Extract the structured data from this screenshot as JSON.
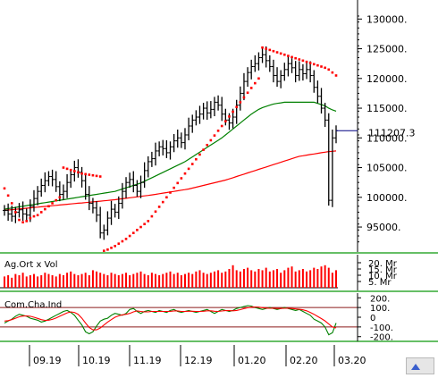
{
  "chart_data": [
    {
      "type": "ohlc",
      "panel": "price",
      "ylim": [
        92000,
        132000
      ],
      "yticks": [
        95000,
        100000,
        105000,
        110000,
        115000,
        120000,
        125000,
        130000
      ],
      "ytick_labels": [
        "95000.",
        "100000.",
        "105000.",
        "110000.",
        "115000.",
        "120000.",
        "125000.",
        "130000."
      ],
      "last_price_label": "111207.3",
      "last_price": 111207.3,
      "series": [
        {
          "role": "price",
          "color": "#000000",
          "values": [
            97800,
            97200,
            96800,
            97500,
            97900,
            97200,
            97000,
            98500,
            99800,
            101000,
            102000,
            102800,
            103500,
            103000,
            101800,
            100500,
            101000,
            102500,
            103800,
            105000,
            104200,
            102800,
            100500,
            99000,
            98200,
            97000,
            94000,
            94500,
            96500,
            98000,
            97500,
            99000,
            101000,
            102500,
            103000,
            102000,
            101000,
            102500,
            104500,
            106000,
            106500,
            107800,
            108500,
            108200,
            107500,
            108500,
            109500,
            110000,
            109200,
            110500,
            112000,
            113000,
            113500,
            114000,
            115000,
            114200,
            114800,
            116000,
            115500,
            114000,
            113000,
            112500,
            113500,
            115500,
            117500,
            119500,
            121000,
            122000,
            122500,
            123500,
            124000,
            123000,
            122000,
            120500,
            119500,
            120500,
            121500,
            122500,
            121800,
            120500,
            121500,
            120800,
            121500,
            120500,
            118500,
            117000,
            115000,
            113000,
            99500,
            110000,
            111207
          ]
        },
        {
          "role": "parabolic-sar",
          "color": "#ff0000",
          "values": [
            101500,
            100300,
            99000,
            97500,
            96200,
            95800,
            96000,
            96500,
            96800,
            97000,
            97500,
            98000,
            98500,
            99000,
            99500,
            100000,
            105000,
            104800,
            104600,
            104400,
            104200,
            104000,
            103900,
            103800,
            103700,
            103600,
            103500,
            91000,
            91200,
            91500,
            91800,
            92200,
            92600,
            93000,
            93500,
            94000,
            94500,
            95000,
            95500,
            96000,
            96800,
            97600,
            98400,
            99200,
            100000,
            100800,
            101600,
            102400,
            103200,
            104000,
            104800,
            105600,
            106400,
            107200,
            108000,
            108800,
            109600,
            110400,
            111200,
            112000,
            112800,
            113600,
            114400,
            115200,
            116000,
            116800,
            117600,
            118400,
            119200,
            120000,
            125200,
            125000,
            124800,
            124600,
            124400,
            124200,
            124000,
            123800,
            123600,
            123400,
            123200,
            123000,
            122800,
            122600,
            122400,
            122200,
            122000,
            121800,
            121500,
            121000,
            120500
          ]
        },
        {
          "role": "moving-average-medium",
          "color": "#008000",
          "values": [
            98000,
            98100,
            98200,
            98300,
            98400,
            98500,
            98600,
            98700,
            98800,
            98900,
            99000,
            99100,
            99200,
            99300,
            99400,
            99500,
            99600,
            99700,
            99800,
            99900,
            100000,
            100100,
            100200,
            100300,
            100400,
            100500,
            100600,
            100700,
            100800,
            100900,
            101000,
            101200,
            101400,
            101600,
            101800,
            102000,
            102200,
            102400,
            102700,
            103000,
            103300,
            103600,
            103900,
            104200,
            104500,
            104800,
            105100,
            105400,
            105700,
            106000,
            106400,
            106800,
            107200,
            107600,
            108000,
            108400,
            108800,
            109200,
            109600,
            110000,
            110500,
            111000,
            111500,
            112000,
            112500,
            113000,
            113500,
            114000,
            114400,
            114800,
            115100,
            115300,
            115500,
            115700,
            115800,
            115900,
            116000,
            116000,
            116000,
            116000,
            116000,
            116000,
            116000,
            116000,
            116000,
            115800,
            115600,
            115400,
            115000,
            114700,
            114500
          ]
        },
        {
          "role": "moving-average-long",
          "color": "#ff0000",
          "values": [
            97800,
            97860,
            97920,
            97980,
            98040,
            98100,
            98160,
            98220,
            98280,
            98340,
            98400,
            98460,
            98520,
            98580,
            98640,
            98700,
            98760,
            98820,
            98880,
            98940,
            99000,
            99060,
            99120,
            99180,
            99240,
            99300,
            99360,
            99420,
            99480,
            99540,
            99600,
            99680,
            99760,
            99840,
            99920,
            100000,
            100080,
            100160,
            100240,
            100320,
            100400,
            100500,
            100600,
            100700,
            100800,
            100900,
            101000,
            101100,
            101200,
            101300,
            101400,
            101550,
            101700,
            101850,
            102000,
            102150,
            102300,
            102450,
            102600,
            102750,
            102900,
            103100,
            103300,
            103500,
            103700,
            103900,
            104100,
            104300,
            104500,
            104700,
            104900,
            105100,
            105300,
            105500,
            105700,
            105900,
            106100,
            106300,
            106500,
            106700,
            106900,
            107000,
            107100,
            107200,
            107300,
            107400,
            107500,
            107600,
            107700,
            107750,
            107800
          ]
        }
      ]
    },
    {
      "type": "bar",
      "panel": "volume",
      "title": "Ag.Ort x Vol",
      "ylim": [
        0,
        25
      ],
      "ytick_labels": [
        "20. Mr",
        "15. Mr",
        "10. Mr",
        "5. Mr"
      ],
      "yticks": [
        20,
        15,
        10,
        5
      ],
      "colors": {
        "bars": "#ff0000",
        "baseline": "#000000"
      },
      "values": [
        9,
        10,
        8,
        11,
        10,
        12,
        9,
        10,
        11,
        9,
        10,
        12,
        11,
        10,
        9,
        11,
        10,
        12,
        13,
        11,
        10,
        11,
        12,
        10,
        14,
        13,
        12,
        11,
        10,
        12,
        11,
        10,
        11,
        12,
        10,
        11,
        12,
        13,
        11,
        10,
        12,
        11,
        10,
        11,
        12,
        13,
        11,
        12,
        10,
        11,
        12,
        11,
        13,
        14,
        12,
        11,
        12,
        13,
        14,
        12,
        13,
        15,
        18,
        14,
        13,
        15,
        16,
        14,
        13,
        15,
        14,
        16,
        13,
        14,
        15,
        12,
        14,
        16,
        17,
        13,
        14,
        15,
        13,
        14,
        16,
        15,
        17,
        18,
        16,
        12,
        14
      ]
    },
    {
      "type": "line",
      "panel": "oscillator",
      "title": "Com.Cha.Ind",
      "ylim": [
        -230,
        230
      ],
      "yticks": [
        200,
        100,
        0,
        -100,
        -200
      ],
      "ytick_labels": [
        "200.",
        "100.",
        "0",
        "-100.",
        "-200."
      ],
      "reference_lines": [
        100,
        -100
      ],
      "series": [
        {
          "role": "cci",
          "color": "#008000",
          "values": [
            -60,
            -40,
            -20,
            10,
            30,
            20,
            10,
            -10,
            -20,
            -30,
            -50,
            -40,
            -20,
            0,
            20,
            40,
            60,
            70,
            50,
            20,
            -30,
            -80,
            -150,
            -170,
            -150,
            -90,
            -40,
            -20,
            -10,
            20,
            40,
            30,
            20,
            40,
            80,
            90,
            60,
            40,
            60,
            70,
            60,
            50,
            70,
            60,
            50,
            70,
            80,
            60,
            50,
            60,
            70,
            60,
            50,
            60,
            70,
            80,
            60,
            40,
            60,
            80,
            70,
            60,
            70,
            90,
            100,
            110,
            120,
            115,
            100,
            90,
            80,
            90,
            100,
            90,
            80,
            90,
            100,
            90,
            80,
            70,
            80,
            60,
            40,
            20,
            -20,
            -40,
            -60,
            -100,
            -180,
            -160,
            -60
          ]
        },
        {
          "role": "cci-signal",
          "color": "#ff0000",
          "values": [
            -40,
            -35,
            -25,
            -10,
            5,
            12,
            14,
            10,
            0,
            -12,
            -25,
            -32,
            -30,
            -22,
            -8,
            10,
            28,
            45,
            55,
            50,
            30,
            -10,
            -60,
            -105,
            -130,
            -130,
            -110,
            -80,
            -50,
            -25,
            0,
            15,
            25,
            30,
            40,
            55,
            65,
            60,
            55,
            55,
            60,
            60,
            60,
            60,
            60,
            60,
            65,
            65,
            60,
            60,
            62,
            62,
            60,
            60,
            62,
            66,
            66,
            62,
            60,
            64,
            68,
            68,
            66,
            70,
            78,
            88,
            98,
            104,
            106,
            104,
            98,
            94,
            92,
            92,
            90,
            90,
            92,
            92,
            90,
            86,
            82,
            76,
            66,
            50,
            30,
            8,
            -14,
            -38,
            -70,
            -100,
            -110
          ]
        }
      ]
    }
  ],
  "x_axis": {
    "labels": [
      "09.19",
      "10.19",
      "11.19",
      "12.19",
      "01.20",
      "02.20",
      "03.20"
    ]
  }
}
